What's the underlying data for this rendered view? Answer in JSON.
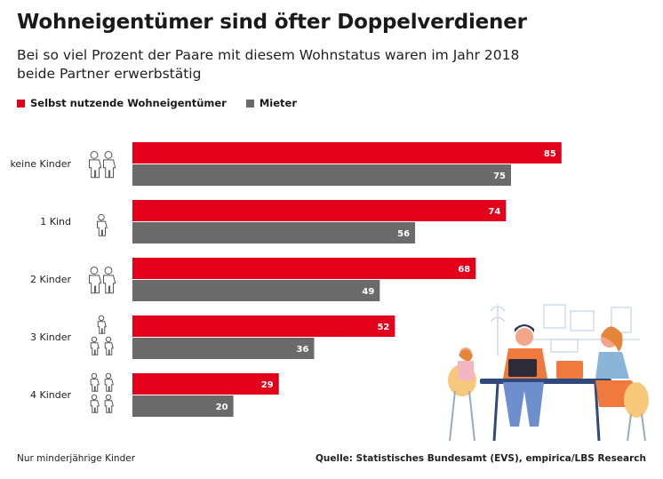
{
  "title": "Wohneigentümer sind öfter Doppelverdiener",
  "subtitle": "Bei so viel Prozent der Paare mit diesem Wohnstatus waren im Jahr 2018 beide Partner erwerbstätig",
  "footnote": "Nur minderjährige Kinder",
  "source": "Quelle: Statistisches Bundesamt (EVS), empirica/LBS Research",
  "colors": {
    "owner": "#e2001a",
    "renter": "#6a6a6a",
    "label": "#ffffff"
  },
  "chart_data": {
    "type": "bar",
    "orientation": "horizontal",
    "title": "Wohneigentümer sind öfter Doppelverdiener",
    "xlabel": "",
    "ylabel": "",
    "xlim": [
      0,
      100
    ],
    "categories": [
      "keine Kinder",
      "1 Kind",
      "2 Kinder",
      "3 Kinder",
      "4 Kinder"
    ],
    "category_icons": [
      "two-children-icon",
      "one-child-icon",
      "two-children-icon",
      "three-children-icon",
      "four-children-icon"
    ],
    "series": [
      {
        "name": "Selbst nutzende Wohneigentümer",
        "values": [
          85,
          74,
          68,
          52,
          29
        ]
      },
      {
        "name": "Mieter",
        "values": [
          75,
          56,
          49,
          36,
          20
        ]
      }
    ]
  }
}
